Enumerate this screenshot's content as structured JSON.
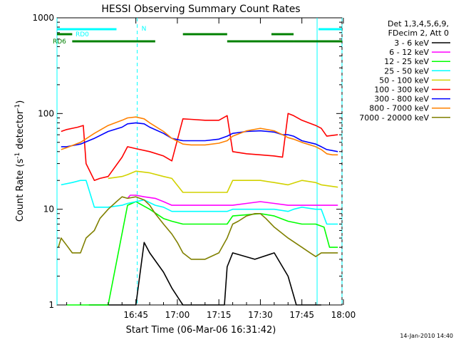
{
  "chart_data": {
    "type": "line",
    "title": "HESSI Observing Summary Count Rates",
    "xlabel": "Start Time (06-Mar-06 16:31:42)",
    "ylabel_parts": [
      "Count Rate (s",
      "-1",
      " detector",
      "-1",
      ")"
    ],
    "yscale": "log",
    "ylim": [
      1,
      1000
    ],
    "xlim_minutes": [
      16.5,
      119.5
    ],
    "x_ticks": [
      {
        "label": "16:45",
        "minute": 45
      },
      {
        "label": "17:00",
        "minute": 60
      },
      {
        "label": "17:15",
        "minute": 75
      },
      {
        "label": "17:30",
        "minute": 90
      },
      {
        "label": "17:45",
        "minute": 105
      },
      {
        "label": "18:00",
        "minute": 120
      }
    ],
    "y_ticks": [
      {
        "label": "1",
        "value": 1
      },
      {
        "label": "10",
        "value": 10
      },
      {
        "label": "100",
        "value": 100
      },
      {
        "label": "1000",
        "value": 1000
      }
    ],
    "legend_header": [
      "Det 1,3,4,5,6,9,",
      "FDecim 2, Att 0"
    ],
    "legend_position": "right",
    "grid": false,
    "series": [
      {
        "name": "3 - 6 keV",
        "color": "#000000",
        "x": [
          28,
          35,
          40,
          45,
          48,
          50,
          55,
          58,
          62,
          70,
          77,
          78,
          80,
          88,
          95,
          100,
          103,
          108,
          112
        ],
        "y": [
          1,
          1,
          1,
          1,
          4.5,
          3.5,
          2.2,
          1.5,
          1,
          1,
          1,
          2.5,
          3.5,
          3,
          3.5,
          2,
          1,
          1,
          1
        ]
      },
      {
        "name": "6 - 12 keV",
        "color": "#ff00ff",
        "x": [
          42,
          43,
          45,
          48,
          52,
          55,
          58,
          62,
          65,
          70,
          75,
          78,
          80,
          85,
          90,
          95,
          100,
          103,
          105,
          110,
          114,
          118
        ],
        "y": [
          13,
          14,
          14,
          13.5,
          13,
          12,
          11,
          11,
          11,
          11,
          11,
          11,
          11,
          11.5,
          12,
          11.5,
          11,
          11,
          11,
          11,
          11,
          11
        ]
      },
      {
        "name": "12 - 25 keV",
        "color": "#00ff00",
        "x": [
          20,
          30,
          33,
          35,
          42,
          45,
          50,
          55,
          58,
          62,
          70,
          78,
          80,
          90,
          95,
          100,
          105,
          110,
          113,
          115,
          118
        ],
        "y": [
          1,
          1,
          1,
          1,
          11,
          12,
          10,
          8,
          7.5,
          7,
          7,
          7,
          8.5,
          9,
          8.5,
          7.5,
          7,
          7,
          6.5,
          4,
          4
        ]
      },
      {
        "name": "25 - 50 keV",
        "color": "#00ffff",
        "x": [
          18,
          22,
          25,
          27,
          30,
          35,
          40,
          42,
          45,
          48,
          52,
          55,
          58,
          62,
          70,
          78,
          80,
          90,
          95,
          100,
          102,
          105,
          110,
          112,
          114,
          116,
          118
        ],
        "y": [
          18,
          19,
          20,
          20,
          10.5,
          10.5,
          11,
          11.5,
          12,
          12.5,
          11,
          10.5,
          9.5,
          9.5,
          9.5,
          9.5,
          10,
          10,
          10,
          9.5,
          10,
          10.5,
          10,
          10,
          7,
          7,
          7
        ]
      },
      {
        "name": "50 - 100 keV",
        "color": "#d2d200",
        "x": [
          35,
          40,
          42,
          45,
          50,
          55,
          58,
          62,
          70,
          78,
          80,
          85,
          90,
          95,
          100,
          105,
          110,
          112,
          118
        ],
        "y": [
          21,
          22,
          23,
          25,
          24,
          22,
          21,
          15,
          15,
          15,
          20,
          20,
          20,
          19,
          18,
          20,
          19,
          18,
          17
        ]
      },
      {
        "name": "100 - 300 keV",
        "color": "#ff0000",
        "x": [
          18,
          20,
          22,
          24,
          26,
          27,
          30,
          32,
          35,
          40,
          42,
          45,
          50,
          55,
          58,
          62,
          65,
          70,
          75,
          78,
          80,
          85,
          90,
          95,
          98,
          100,
          102,
          105,
          110,
          112,
          114,
          116,
          118
        ],
        "y": [
          65,
          68,
          70,
          72,
          75,
          30,
          20,
          21,
          22,
          35,
          45,
          43,
          40,
          36,
          32,
          88,
          87,
          85,
          85,
          95,
          40,
          38,
          37,
          36,
          35,
          100,
          95,
          85,
          75,
          70,
          58,
          59,
          60
        ]
      },
      {
        "name": "300 - 800 keV",
        "color": "#0000ff",
        "x": [
          18,
          20,
          25,
          30,
          35,
          40,
          42,
          45,
          48,
          50,
          55,
          58,
          62,
          65,
          70,
          75,
          78,
          80,
          85,
          90,
          95,
          98,
          100,
          102,
          105,
          110,
          112,
          114,
          116,
          118
        ],
        "y": [
          45,
          45,
          48,
          55,
          65,
          72,
          78,
          80,
          78,
          72,
          62,
          55,
          52,
          52,
          52,
          54,
          58,
          62,
          65,
          66,
          64,
          60,
          60,
          58,
          52,
          48,
          45,
          42,
          41,
          40
        ]
      },
      {
        "name": "800 - 7000 keV",
        "color": "#ff8000",
        "x": [
          18,
          20,
          25,
          30,
          35,
          40,
          42,
          45,
          48,
          50,
          55,
          58,
          62,
          65,
          70,
          75,
          78,
          80,
          85,
          90,
          95,
          98,
          100,
          102,
          105,
          110,
          112,
          114,
          116,
          118
        ],
        "y": [
          42,
          44,
          50,
          62,
          75,
          85,
          90,
          92,
          88,
          80,
          65,
          55,
          48,
          47,
          47,
          49,
          52,
          58,
          66,
          70,
          66,
          60,
          56,
          54,
          50,
          45,
          42,
          38,
          37,
          37
        ]
      },
      {
        "name": "7000 - 20000 keV",
        "color": "#808000",
        "x": [
          17,
          18,
          20,
          22,
          24,
          25,
          27,
          30,
          32,
          35,
          38,
          40,
          42,
          45,
          48,
          50,
          52,
          55,
          58,
          60,
          62,
          65,
          70,
          75,
          78,
          80,
          82,
          85,
          88,
          90,
          92,
          95,
          100,
          105,
          108,
          110,
          112,
          115,
          118
        ],
        "y": [
          4,
          5,
          4.2,
          3.5,
          3.5,
          3.5,
          5,
          6,
          8,
          10,
          12,
          13.5,
          13,
          13.5,
          12.5,
          11,
          9,
          7,
          5.5,
          4.5,
          3.5,
          3,
          3,
          3.5,
          5,
          7,
          7.5,
          8.5,
          9,
          9,
          8,
          6.5,
          5,
          4,
          3.5,
          3.2,
          3.5,
          3.5,
          3.5
        ]
      }
    ],
    "flags": [
      {
        "label": "RD0",
        "color": "#00ffff",
        "segments": [
          [
            16.5,
            38
          ]
        ],
        "level": 1
      },
      {
        "label": "N",
        "color": "#00ffff",
        "segments": [
          [],
          [
            111,
            119.5
          ]
        ],
        "level": 0
      },
      {
        "label": "",
        "color": "#008000",
        "segments": [
          [
            16.5,
            22
          ],
          [
            62,
            78
          ],
          [
            94,
            102
          ]
        ],
        "level": 2
      },
      {
        "label": "RD6",
        "color": "#008000",
        "segments": [
          [
            22,
            52
          ],
          [
            102,
            119.5
          ]
        ],
        "level": 3
      },
      {
        "label": "",
        "color": "#008000",
        "segments": [
          [
            78,
            102
          ]
        ],
        "level": 3
      }
    ],
    "vlines": [
      {
        "minute": 16.5,
        "style": "solid"
      },
      {
        "minute": 110.5,
        "style": "solid"
      },
      {
        "minute": 45.5,
        "style": "dashed"
      },
      {
        "minute": 119.5,
        "style": "dashed"
      }
    ]
  },
  "footer": {
    "timestamp": "14-Jan-2010 14:40"
  }
}
